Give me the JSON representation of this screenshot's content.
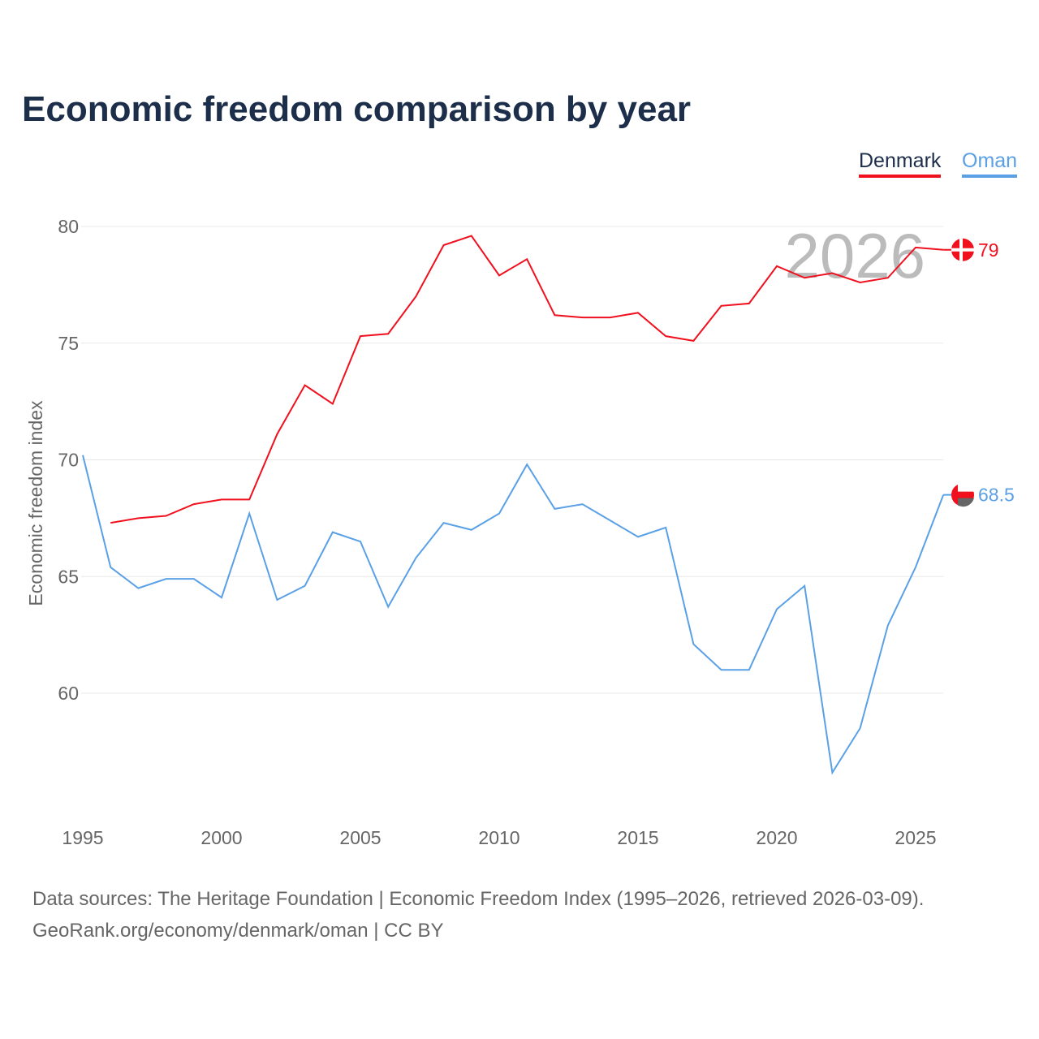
{
  "title": "Economic freedom comparison by year",
  "legend": [
    {
      "name": "Denmark",
      "color": "#f0101e"
    },
    {
      "name": "Oman",
      "color": "#5aa0e6"
    }
  ],
  "source_line1": "Data sources: The Heritage Foundation | Economic Freedom Index (1995–2026, retrieved 2026-03-09).",
  "source_line2": "GeoRank.org/economy/denmark/oman | CC BY",
  "chart_data": {
    "type": "line",
    "title": "Economic freedom comparison by year",
    "xlabel": "",
    "ylabel": "Economic freedom index",
    "year_watermark": "2026",
    "xlim": [
      1995,
      2026
    ],
    "ylim": [
      55,
      81
    ],
    "xticks": [
      1995,
      2000,
      2005,
      2010,
      2015,
      2020,
      2025
    ],
    "yticks": [
      60,
      65,
      70,
      75,
      80
    ],
    "grid": true,
    "legend_position": "top-right",
    "series": [
      {
        "name": "Denmark",
        "color": "#f0101e",
        "end_label": "79",
        "x": [
          1996,
          1997,
          1998,
          1999,
          2000,
          2001,
          2002,
          2003,
          2004,
          2005,
          2006,
          2007,
          2008,
          2009,
          2010,
          2011,
          2012,
          2013,
          2014,
          2015,
          2016,
          2017,
          2018,
          2019,
          2020,
          2021,
          2022,
          2023,
          2024,
          2025,
          2026
        ],
        "values": [
          67.3,
          67.5,
          67.6,
          68.1,
          68.3,
          68.3,
          71.1,
          73.2,
          72.4,
          75.3,
          75.4,
          77.0,
          79.2,
          79.6,
          77.9,
          78.6,
          76.2,
          76.1,
          76.1,
          76.3,
          75.3,
          75.1,
          76.6,
          76.7,
          78.3,
          77.8,
          78.0,
          77.6,
          77.8,
          79.1,
          79.0
        ]
      },
      {
        "name": "Oman",
        "color": "#5aa0e6",
        "end_label": "68.5",
        "x": [
          1995,
          1996,
          1997,
          1998,
          1999,
          2000,
          2001,
          2002,
          2003,
          2004,
          2005,
          2006,
          2007,
          2008,
          2009,
          2010,
          2011,
          2012,
          2013,
          2014,
          2015,
          2016,
          2017,
          2018,
          2019,
          2020,
          2021,
          2022,
          2023,
          2024,
          2025,
          2026
        ],
        "values": [
          70.2,
          65.4,
          64.5,
          64.9,
          64.9,
          64.1,
          67.7,
          64.0,
          64.6,
          66.9,
          66.5,
          63.7,
          65.8,
          67.3,
          67.0,
          67.7,
          69.8,
          67.9,
          68.1,
          67.4,
          66.7,
          67.1,
          62.1,
          61.0,
          61.0,
          63.6,
          64.6,
          56.6,
          58.5,
          62.9,
          65.4,
          68.5
        ]
      }
    ]
  }
}
